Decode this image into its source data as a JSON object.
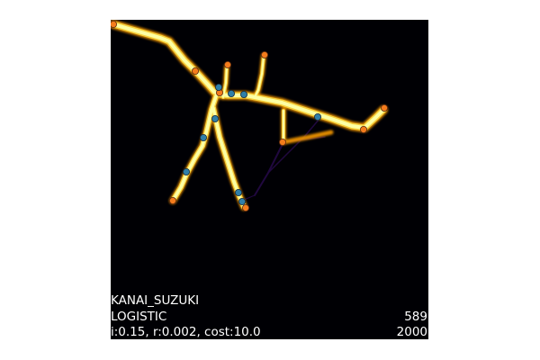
{
  "title_lines": [
    "KANAI_SUZUKI",
    "LOGISTIC",
    "i:0.15, r:0.002, cost:10.0"
  ],
  "counters": [
    "589",
    "2000"
  ],
  "colors": {
    "background": "#000004",
    "trail_core": "#fcffa4",
    "trail_mid": "#f7d13d",
    "trail_edge": "#fb9b06",
    "trail_faint": "#3b0f70",
    "node_endpoint": "#f47c1c",
    "node_junction": "#2f7fa8",
    "node_outline": "#5a2a10",
    "text": "#ffffff"
  }
}
